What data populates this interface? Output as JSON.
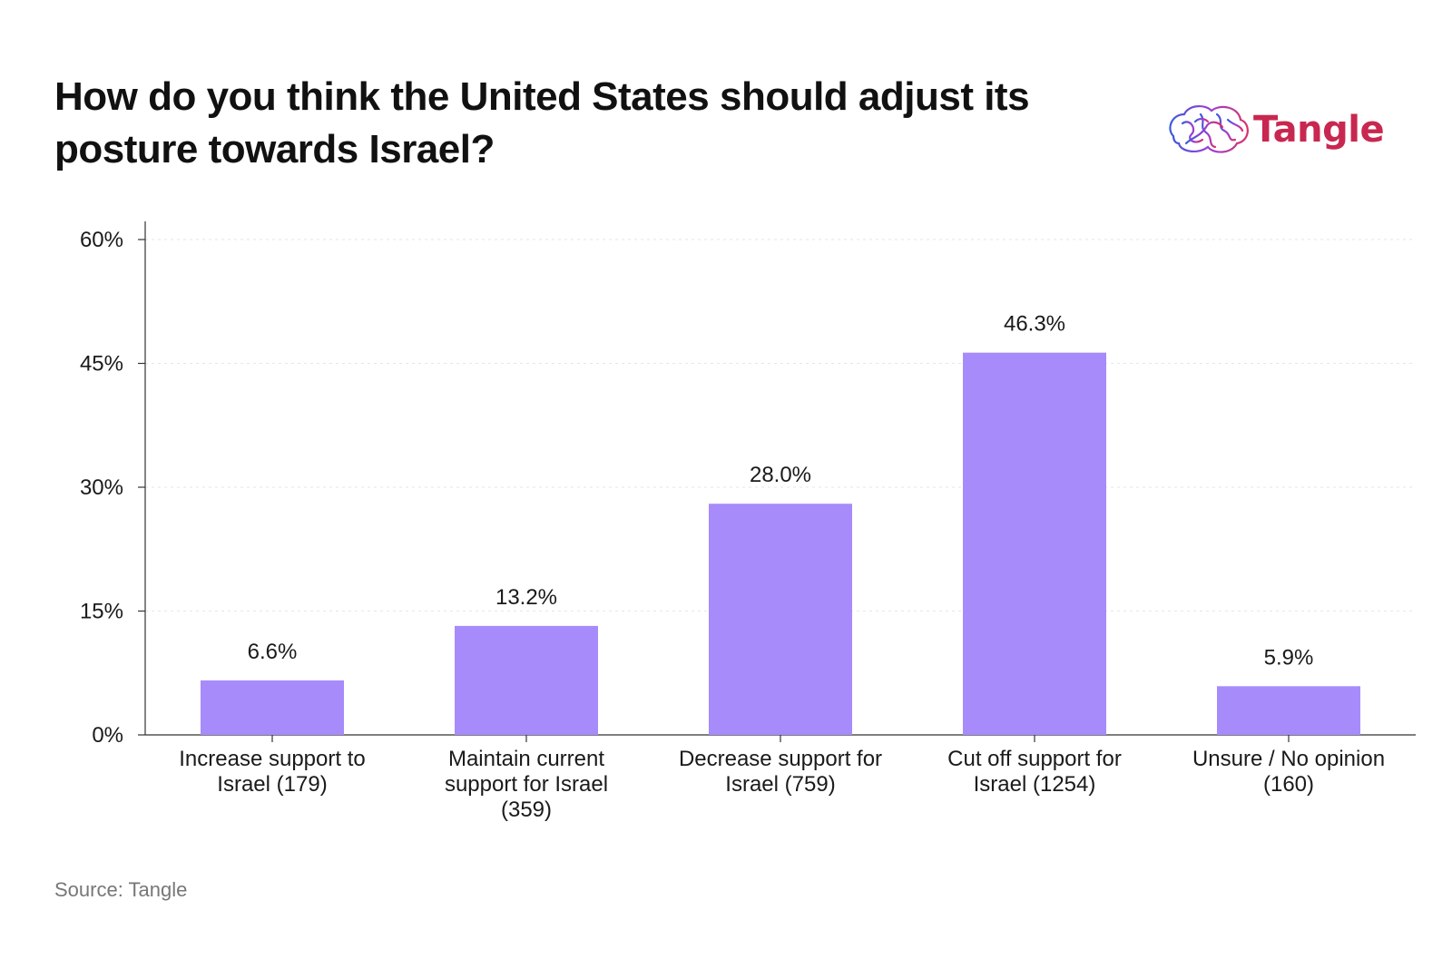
{
  "title": "How do you think the United States should adjust its posture towards Israel?",
  "logo": {
    "text": "Tangle",
    "icon": "brain-icon"
  },
  "source": "Source: Tangle",
  "colors": {
    "bar": "#a78bfa",
    "axis": "#333333",
    "grid": "#e6e6e6",
    "text": "#1a1a1a"
  },
  "chart_data": {
    "type": "bar",
    "title": "How do you think the United States should adjust its posture towards Israel?",
    "categories": [
      [
        "Increase support to",
        "Israel (179)"
      ],
      [
        "Maintain current",
        "support for Israel",
        "(359)"
      ],
      [
        "Decrease support for",
        "Israel (759)"
      ],
      [
        "Cut off support for",
        "Israel (1254)"
      ],
      [
        "Unsure / No opinion",
        "(160)"
      ]
    ],
    "values": [
      6.6,
      13.2,
      28.0,
      46.3,
      5.9
    ],
    "value_labels": [
      "6.6%",
      "13.2%",
      "28.0%",
      "46.3%",
      "5.9%"
    ],
    "ylim": [
      0,
      60
    ],
    "yticks": [
      0,
      15,
      30,
      45,
      60
    ],
    "ytick_labels": [
      "0%",
      "15%",
      "30%",
      "45%",
      "60%"
    ],
    "grid": true,
    "xlabel": "",
    "ylabel": ""
  }
}
